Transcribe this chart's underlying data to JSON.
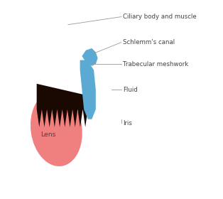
{
  "background_color": "#ffffff",
  "labels": {
    "ciliary": "Ciliary body and muscle",
    "schlemm": "Schlemm's canal",
    "trabecular": "Trabecular meshwork",
    "fluid": "Fluid",
    "iris": "Iris",
    "lens": "Lens"
  },
  "colors": {
    "sclera_outer": "#e8a0a0",
    "sclera_inner": "#f5c5c5",
    "ciliary_medium": "#7b3a1f",
    "ciliary_dark": "#3a1508",
    "ciliary_very_dark": "#1a0803",
    "yellow_layer": "#d4a017",
    "blue_canal": "#5aaad4",
    "iris_pink": "#e87878",
    "lens_pink": "#f08080",
    "line_color": "#999999",
    "text_color": "#444444"
  },
  "figsize": [
    3.14,
    2.8
  ],
  "dpi": 100
}
